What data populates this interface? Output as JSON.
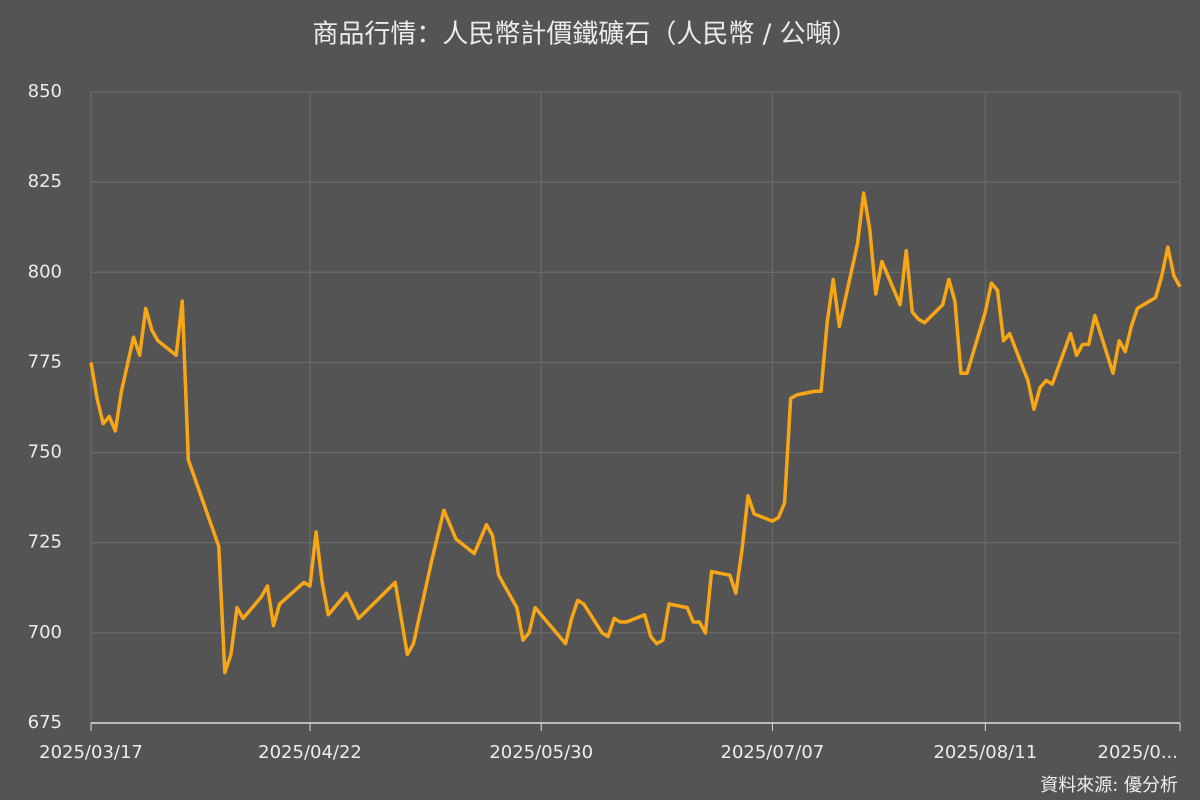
{
  "chart_data": {
    "type": "line",
    "title": "商品行情：人民幣計價鐵礦石（人民幣 / 公噸）",
    "source": "資料來源: 優分析",
    "color": "#f7a616",
    "grid": true,
    "x": [
      "2025/03/17",
      "2025/03/18",
      "2025/03/19",
      "2025/03/20",
      "2025/03/21",
      "2025/03/22",
      "2025/03/24",
      "2025/03/25",
      "2025/03/26",
      "2025/03/27",
      "2025/03/28",
      "2025/03/31",
      "2025/04/01",
      "2025/04/02",
      "2025/04/07",
      "2025/04/08",
      "2025/04/09",
      "2025/04/10",
      "2025/04/11",
      "2025/04/14",
      "2025/04/15",
      "2025/04/16",
      "2025/04/17",
      "2025/04/21",
      "2025/04/22",
      "2025/04/23",
      "2025/04/24",
      "2025/04/25",
      "2025/04/28",
      "2025/04/30",
      "2025/05/06",
      "2025/05/08",
      "2025/05/09",
      "2025/05/12",
      "2025/05/14",
      "2025/05/16",
      "2025/05/19",
      "2025/05/21",
      "2025/05/22",
      "2025/05/23",
      "2025/05/26",
      "2025/05/27",
      "2025/05/28",
      "2025/05/29",
      "2025/05/30",
      "2025/06/03",
      "2025/06/04",
      "2025/06/05",
      "2025/06/06",
      "2025/06/09",
      "2025/06/10",
      "2025/06/11",
      "2025/06/12",
      "2025/06/13",
      "2025/06/16",
      "2025/06/17",
      "2025/06/18",
      "2025/06/19",
      "2025/06/20",
      "2025/06/23",
      "2025/06/24",
      "2025/06/25",
      "2025/06/26",
      "2025/06/27",
      "2025/06/30",
      "2025/07/01",
      "2025/07/02",
      "2025/07/03",
      "2025/07/04",
      "2025/07/07",
      "2025/07/08",
      "2025/07/09",
      "2025/07/10",
      "2025/07/11",
      "2025/07/14",
      "2025/07/15",
      "2025/07/16",
      "2025/07/17",
      "2025/07/18",
      "2025/07/21",
      "2025/07/22",
      "2025/07/23",
      "2025/07/24",
      "2025/07/25",
      "2025/07/28",
      "2025/07/29",
      "2025/07/30",
      "2025/07/31",
      "2025/08/01",
      "2025/08/04",
      "2025/08/05",
      "2025/08/06",
      "2025/08/07",
      "2025/08/08",
      "2025/08/11",
      "2025/08/12",
      "2025/08/13",
      "2025/08/14",
      "2025/08/15",
      "2025/08/18",
      "2025/08/19",
      "2025/08/20",
      "2025/08/21",
      "2025/08/22",
      "2025/08/25",
      "2025/08/26",
      "2025/08/27",
      "2025/08/28",
      "2025/08/29",
      "2025/09/01",
      "2025/09/02",
      "2025/09/03",
      "2025/09/04",
      "2025/09/05",
      "2025/09/08",
      "2025/09/09",
      "2025/09/10",
      "2025/09/11",
      "2025/09/12"
    ],
    "values": [
      775,
      765,
      758,
      760,
      756,
      767,
      782,
      777,
      790,
      784,
      781,
      777,
      792,
      748,
      724,
      689,
      694,
      707,
      704,
      710,
      713,
      702,
      708,
      714,
      713,
      728,
      714,
      705,
      711,
      704,
      714,
      694,
      697,
      720,
      734,
      726,
      722,
      730,
      727,
      716,
      707,
      698,
      700,
      707,
      705,
      697,
      704,
      709,
      708,
      700,
      699,
      704,
      703,
      703,
      705,
      699,
      697,
      698,
      708,
      707,
      703,
      703,
      700,
      717,
      716,
      711,
      723,
      738,
      733,
      731,
      732,
      736,
      765,
      766,
      767,
      767,
      786,
      798,
      785,
      808,
      822,
      812,
      794,
      803,
      791,
      806,
      789,
      787,
      786,
      791,
      798,
      792,
      772,
      772,
      789,
      797,
      795,
      781,
      783,
      770,
      762,
      768,
      770,
      769,
      783,
      777,
      780,
      780,
      788,
      772,
      781,
      778,
      785,
      790,
      793,
      799,
      807,
      799,
      796
    ],
    "xlim": [
      "2025/03/17",
      "2025/09/12"
    ],
    "xticks": [
      "2025/03/17",
      "2025/04/22",
      "2025/05/30",
      "2025/07/07",
      "2025/08/11",
      {
        "value": "2025/09/12",
        "label": "2025/0..."
      }
    ],
    "ylim": [
      675,
      850
    ],
    "yticks": [
      675,
      700,
      725,
      750,
      775,
      800,
      825,
      850
    ]
  }
}
